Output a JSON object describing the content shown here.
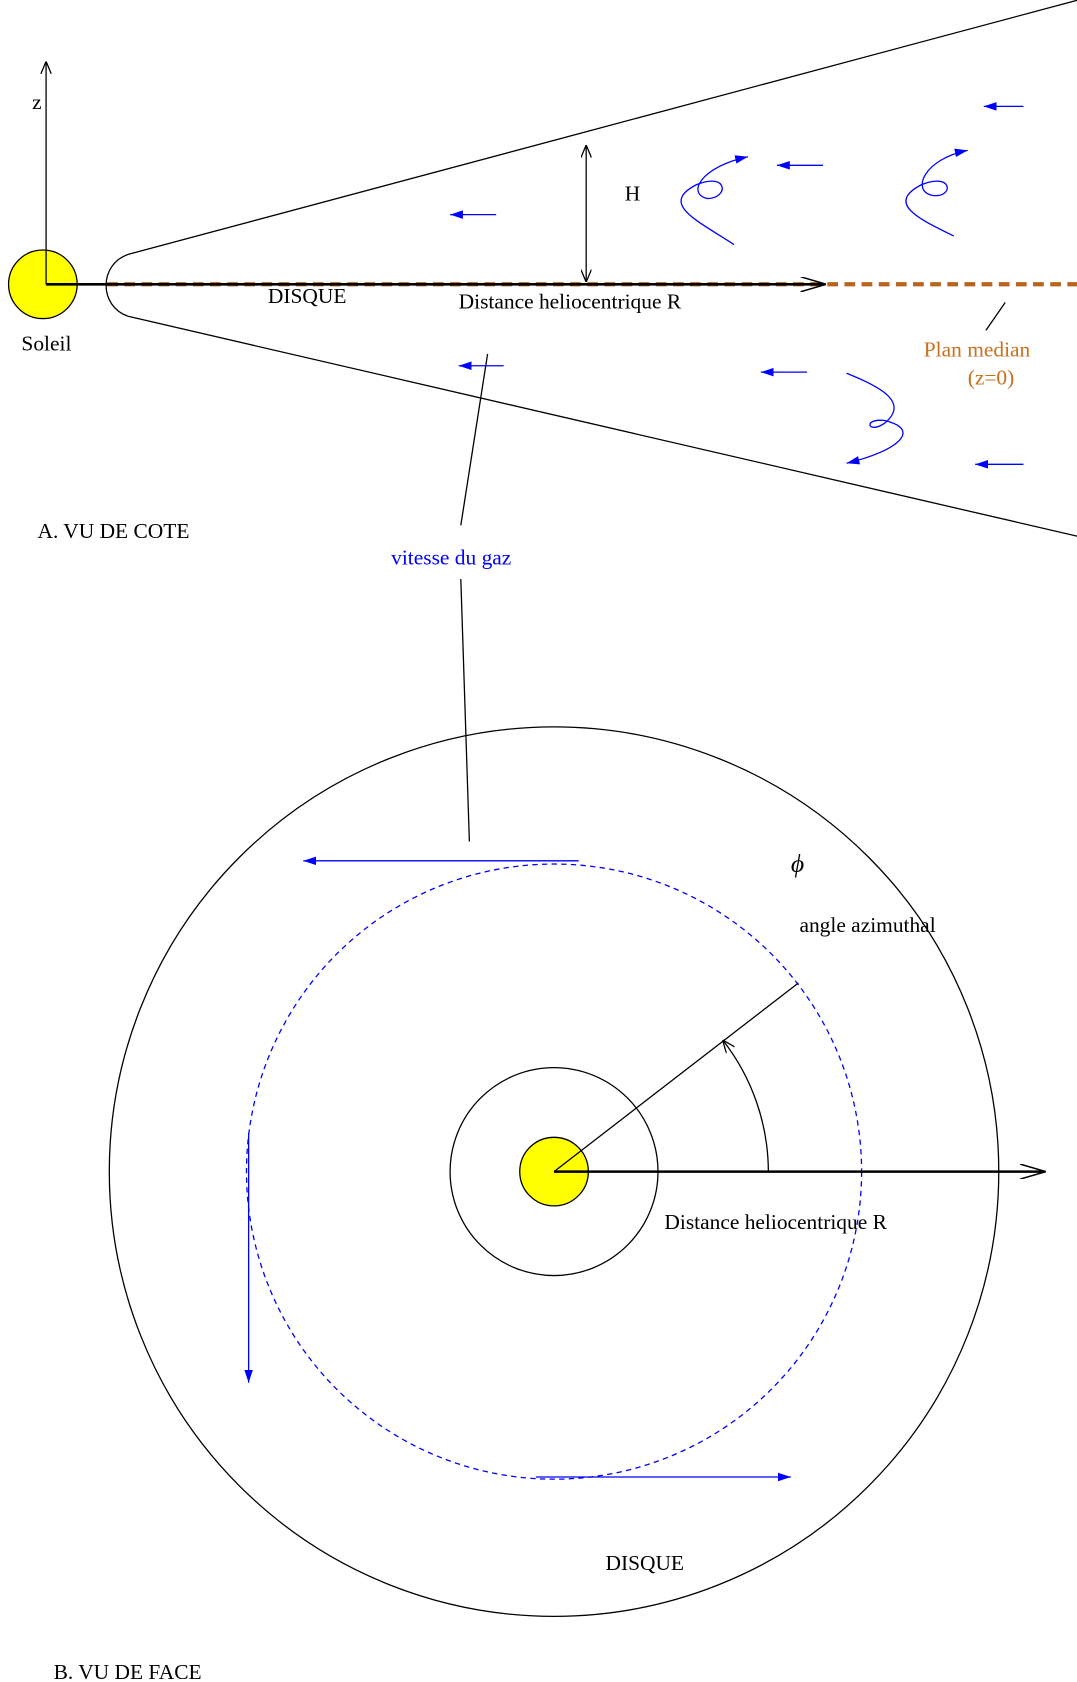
{
  "side_view": {
    "title": "A. VU DE COTE",
    "axis_z": "z",
    "height": "H",
    "sun": "Soleil",
    "disk": "DISQUE",
    "radial_axis": "Distance heliocentrique R",
    "midplane": "Plan median",
    "midplane_eq": "(z=0)",
    "gas_velocity": "vitesse du gaz"
  },
  "face_view": {
    "title": "B. VU DE FACE",
    "phi": "ϕ",
    "azimuth": "angle azimuthal",
    "radial_axis": "Distance heliocentrique R",
    "disk": "DISQUE"
  }
}
